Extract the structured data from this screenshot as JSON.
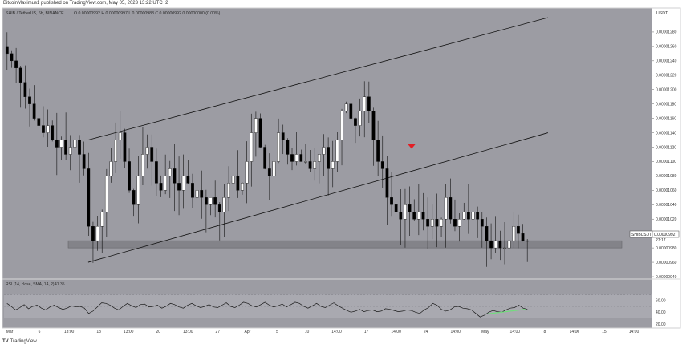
{
  "header": {
    "publisher": "BitcoinMaximus1 published on TradingView.com, May 05, 2023 13:22 UTC+2"
  },
  "footer": {
    "brand_logo": "TV",
    "brand": "TradingView"
  },
  "colors": {
    "background": "#9c9ca3",
    "bull_candle": "#ffffff",
    "bear_candle": "#000000",
    "support_zone": "#7b7b80",
    "rsi_line": "#1a1a1a",
    "rsi_segment": "#6ee07a",
    "arrow": "#e31e24"
  },
  "chart_data": [
    {
      "type": "candlestick",
      "title": "SHIB / TetherUS, 6h, BINANCE",
      "ohlc_readout": "O 0.00000992  H 0.00000997  L 0.00000988  C 0.00000992  0.00000000 (0.00%)",
      "currency": "USDT",
      "ylim": [
        9.4e-06,
        1.3e-05
      ],
      "y_ticks": [
        "0.00001280",
        "0.00001260",
        "0.00001240",
        "0.00001220",
        "0.00001200",
        "0.00001180",
        "0.00001160",
        "0.00001140",
        "0.00001120",
        "0.00001100",
        "0.00001080",
        "0.00001060",
        "0.00001040",
        "0.00001020",
        "0.00001000",
        "0.00000980",
        "0.00000960",
        "0.00000940"
      ],
      "x_ticks": [
        "Mar",
        "6",
        "13:00",
        "13",
        "13:00",
        "20",
        "13:00",
        "27",
        "Apr",
        "5",
        "10",
        "14:00",
        "17",
        "14:00",
        "24",
        "14:00",
        "May",
        "14:00",
        "8",
        "14:00",
        "15",
        "14:00"
      ],
      "price_label": {
        "symbol": "SHIBUSDT",
        "value": "0.00000992",
        "countdown": "27:17"
      },
      "close_series": [
        1.25e-05,
        1.24e-05,
        1.23e-05,
        1.21e-05,
        1.19e-05,
        1.18e-05,
        1.16e-05,
        1.15e-05,
        1.14e-05,
        1.15e-05,
        1.13e-05,
        1.12e-05,
        1.13e-05,
        1.11e-05,
        1.12e-05,
        1.13e-05,
        1.11e-05,
        1.09e-05,
        1.01e-05,
        9.9e-06,
        1.01e-05,
        1.03e-05,
        1.08e-05,
        1.1e-05,
        1.13e-05,
        1.14e-05,
        1.1e-05,
        1.06e-05,
        1.04e-05,
        1.08e-05,
        1.11e-05,
        1.12e-05,
        1.1e-05,
        1.07e-05,
        1.06e-05,
        1.08e-05,
        1.09e-05,
        1.07e-05,
        1.06e-05,
        1.08e-05,
        1.07e-05,
        1.05e-05,
        1.06e-05,
        1.05e-05,
        1.04e-05,
        1.05e-05,
        1.04e-05,
        1.03e-05,
        1.05e-05,
        1.07e-05,
        1.08e-05,
        1.06e-05,
        1.07e-05,
        1.1e-05,
        1.14e-05,
        1.16e-05,
        1.12e-05,
        1.09e-05,
        1.08e-05,
        1.1e-05,
        1.14e-05,
        1.13e-05,
        1.11e-05,
        1.1e-05,
        1.11e-05,
        1.1e-05,
        1.1e-05,
        1.09e-05,
        1.1e-05,
        1.11e-05,
        1.12e-05,
        1.09e-05,
        1.1e-05,
        1.13e-05,
        1.17e-05,
        1.18e-05,
        1.16e-05,
        1.15e-05,
        1.17e-05,
        1.19e-05,
        1.17e-05,
        1.13e-05,
        1.1e-05,
        1.09e-05,
        1.05e-05,
        1.04e-05,
        1.03e-05,
        1.02e-05,
        1.04e-05,
        1.03e-05,
        1.02e-05,
        1.03e-05,
        1.02e-05,
        1.01e-05,
        1.02e-05,
        1.01e-05,
        1.02e-05,
        1.05e-05,
        1.02e-05,
        1.01e-05,
        1.02e-05,
        1.03e-05,
        1.02e-05,
        1.03e-05,
        1.02e-05,
        1.01e-05,
        9.9e-06,
        9.8e-06,
        9.9e-06,
        9.8e-06,
        9.8e-06,
        9.9e-06,
        1.01e-05,
        1e-05,
        9.9e-06,
        9.9e-06
      ],
      "support_zone": {
        "low": 9.8e-06,
        "high": 9.9e-06
      },
      "channel": {
        "lower": [
          {
            "x": 0.13,
            "price": 9.6e-06
          },
          {
            "x": 0.84,
            "price": 1.14e-05
          }
        ],
        "upper": [
          {
            "x": 0.13,
            "price": 1.13e-05
          },
          {
            "x": 0.84,
            "price": 1.3e-05
          }
        ]
      },
      "annotation": {
        "type": "sell-arrow",
        "color": "#e31e24"
      }
    },
    {
      "type": "line",
      "title": "RSI (14, close, SMA, 14, 2)",
      "value": "41.35",
      "ylim": [
        20,
        80
      ],
      "y_ticks": [
        "60.00",
        "40.00",
        "20.00"
      ],
      "band": [
        30,
        70
      ],
      "values": [
        55,
        50,
        44,
        48,
        53,
        46,
        50,
        52,
        47,
        44,
        49,
        52,
        48,
        45,
        47,
        51,
        49,
        50,
        47,
        38,
        42,
        49,
        56,
        55,
        52,
        47,
        44,
        50,
        55,
        51,
        48,
        53,
        54,
        49,
        50,
        52,
        47,
        50,
        55,
        53,
        49,
        47,
        52,
        55,
        51,
        48,
        50,
        53,
        49,
        48,
        52,
        56,
        50,
        48,
        52,
        57,
        55,
        51,
        49,
        53,
        57,
        52,
        49,
        51,
        54,
        49,
        53,
        57,
        55,
        50,
        47,
        51,
        55,
        50,
        48,
        52,
        56,
        51,
        47,
        43,
        40,
        42,
        45,
        41,
        43,
        44,
        41,
        42,
        46,
        45,
        43,
        41,
        42,
        44,
        43,
        40,
        38,
        44,
        48,
        55,
        52,
        45,
        42,
        44,
        49,
        50,
        47,
        46,
        44,
        38,
        32,
        35,
        40,
        43,
        41,
        40,
        44,
        47,
        48,
        52,
        47,
        45
      ]
    }
  ]
}
